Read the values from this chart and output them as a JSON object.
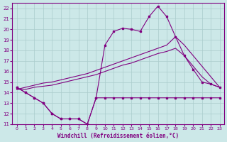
{
  "xlabel": "Windchill (Refroidissement éolien,°C)",
  "bg_color": "#cce8e8",
  "line_color": "#800080",
  "grid_color": "#aacccc",
  "ylim": [
    11,
    22.5
  ],
  "xlim": [
    -0.5,
    23.5
  ],
  "yticks": [
    11,
    12,
    13,
    14,
    15,
    16,
    17,
    18,
    19,
    20,
    21,
    22
  ],
  "xticks": [
    0,
    1,
    2,
    3,
    4,
    5,
    6,
    7,
    8,
    9,
    10,
    11,
    12,
    13,
    14,
    15,
    16,
    17,
    18,
    19,
    20,
    21,
    22,
    23
  ],
  "line1_x": [
    0,
    1,
    2,
    3,
    4,
    5,
    6,
    7,
    8,
    9,
    10,
    11,
    12,
    13,
    14,
    15,
    16,
    17,
    18,
    19,
    20,
    21,
    22,
    23
  ],
  "line1_y": [
    14.5,
    14.0,
    13.5,
    13.0,
    12.0,
    11.5,
    11.5,
    11.5,
    11.0,
    13.5,
    13.5,
    13.5,
    13.5,
    13.5,
    13.5,
    13.5,
    13.5,
    13.5,
    13.5,
    13.5,
    13.5,
    13.5,
    13.5,
    13.5
  ],
  "line2_x": [
    0,
    1,
    2,
    3,
    4,
    5,
    6,
    7,
    8,
    9,
    10,
    11,
    12,
    13,
    14,
    15,
    16,
    17,
    18,
    19,
    20,
    21,
    22,
    23
  ],
  "line2_y": [
    14.5,
    14.0,
    13.5,
    13.0,
    12.0,
    11.5,
    11.5,
    11.5,
    11.0,
    13.5,
    18.5,
    19.8,
    20.1,
    20.0,
    19.8,
    21.2,
    22.2,
    21.2,
    19.3,
    17.5,
    16.2,
    15.0,
    14.8,
    14.5
  ],
  "line3_x": [
    0,
    1,
    2,
    3,
    4,
    5,
    6,
    7,
    8,
    9,
    10,
    11,
    12,
    13,
    14,
    15,
    16,
    17,
    18,
    19,
    20,
    21,
    22,
    23
  ],
  "line3_y": [
    14.3,
    14.3,
    14.5,
    14.6,
    14.7,
    14.9,
    15.1,
    15.3,
    15.5,
    15.7,
    16.0,
    16.3,
    16.6,
    16.8,
    17.1,
    17.4,
    17.7,
    17.9,
    18.2,
    17.5,
    16.5,
    15.5,
    14.8,
    14.5
  ],
  "line4_x": [
    0,
    1,
    2,
    3,
    4,
    5,
    6,
    7,
    8,
    9,
    10,
    11,
    12,
    13,
    14,
    15,
    16,
    17,
    18,
    19,
    20,
    21,
    22,
    23
  ],
  "line4_y": [
    14.3,
    14.5,
    14.7,
    14.9,
    15.0,
    15.2,
    15.4,
    15.6,
    15.8,
    16.1,
    16.4,
    16.7,
    17.0,
    17.3,
    17.6,
    17.9,
    18.2,
    18.5,
    19.3,
    18.5,
    17.5,
    16.5,
    15.5,
    14.5
  ]
}
